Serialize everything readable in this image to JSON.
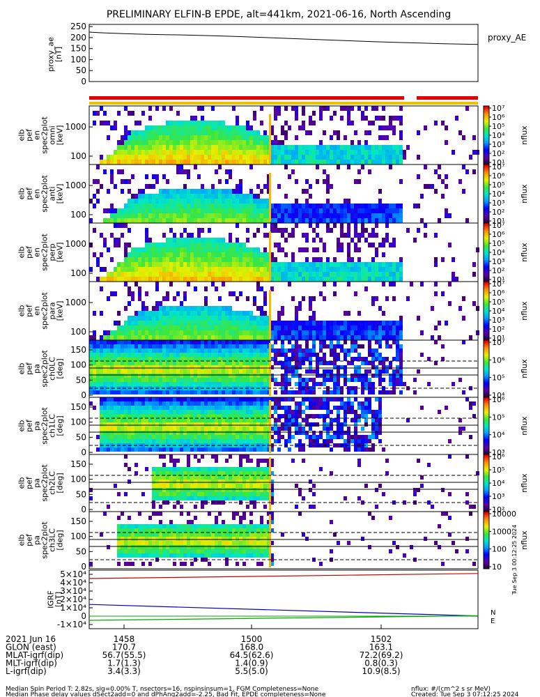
{
  "title": "PRELIMINARY ELFIN-B EPDE, alt=441km, 2021-06-16, North Ascending",
  "colors": {
    "background": "#ffffff",
    "axes": "#000000",
    "fov_bar_red": "#e00000",
    "fov_bar_yellow": "#f0c000",
    "igrf_x": "#cc0000",
    "igrf_y": "#00aa00",
    "igrf_z": "#0000cc",
    "proxy_ae_line": "#000000"
  },
  "colorbar_ticks": {
    "energy": [
      "10¹",
      "10²",
      "10³",
      "10⁴",
      "10⁵",
      "10⁶",
      "10⁷"
    ],
    "pa0": [
      "10⁴",
      "10⁵",
      "10⁶",
      "10⁷"
    ],
    "pa1": [
      "10³",
      "10⁴",
      "10⁵",
      "10⁶"
    ],
    "pa2": [
      "10²",
      "10³",
      "10⁴",
      "10⁵",
      "10⁶"
    ],
    "pa3": [
      "10",
      "100",
      "1000",
      "10000"
    ]
  },
  "footer": {
    "rows": [
      {
        "label": "2021 Jun 16",
        "values": [
          "1458",
          "1500",
          "1502"
        ]
      },
      {
        "label": "GLON (east)",
        "values": [
          "170.7",
          "168.0",
          "163.1"
        ]
      },
      {
        "label": "MLAT-igrf(dip)",
        "values": [
          "56.7(55.5)",
          "64.5(62.6)",
          "72.2(69.2)"
        ]
      },
      {
        "label": "MLT-igrf(dip)",
        "values": [
          "1.7(1.3)",
          "1.4(0.9)",
          "0.8(0.3)"
        ]
      },
      {
        "label": "L-igrf(dip)",
        "values": [
          "3.4(3.3)",
          "5.5(5.0)",
          "10.9(8.5)"
        ]
      }
    ],
    "note1": "Median Spin Period T: 2.82s, sig=0.00% T, nsectors=16, nspinsinsum=1, FGM Completeness=None",
    "note2": "Median Phase delay values dSect2add=0 and dPhAng2add=-2.25, Bad Fit, EPDE completeness=None",
    "units": "nflux: #/(cm^2 s sr MeV)",
    "created": "Created: Tue Sep  3 07:12:25 2024",
    "side_stamp": "Tue Sep  3 00:12:25 2024"
  },
  "chart_data": [
    {
      "type": "line",
      "panel": "proxy_ae",
      "ylabel": "proxy_ae\n[nT]",
      "legend": "proxy_AE",
      "ylim": [
        0,
        260
      ],
      "yticks": [
        "0",
        "50",
        "100",
        "150",
        "200",
        "250"
      ],
      "x_minutes": [
        0,
        0.1,
        0.3,
        0.5,
        0.7,
        0.9,
        1.1,
        1.3,
        1.5,
        1.7,
        1.9,
        2.1,
        2.3,
        2.5,
        2.7,
        2.9,
        3.1,
        3.4
      ],
      "values": [
        225,
        222,
        218,
        215,
        213,
        211,
        208,
        205,
        201,
        197,
        193,
        189,
        185,
        181,
        178,
        175,
        172,
        169
      ]
    },
    {
      "type": "heatmap",
      "panel": "energy-omni",
      "ylabel": "elb\npef\nen\nspec2plot\nomni\n[keV]",
      "yticks": [
        "100",
        "1000"
      ],
      "zlabel": "nflux",
      "zrange_log10": [
        1,
        7
      ]
    },
    {
      "type": "heatmap",
      "panel": "energy-anti",
      "ylabel": "elb\npef\nen\nspec2plot\nanti\n[keV]",
      "yticks": [
        "100",
        "1000"
      ],
      "zlabel": "nflux",
      "zrange_log10": [
        1,
        7
      ]
    },
    {
      "type": "heatmap",
      "panel": "energy-perp",
      "ylabel": "elb\npef\nen\nspec2plot\nperp\n[keV]",
      "yticks": [
        "100",
        "1000"
      ],
      "zlabel": "nflux",
      "zrange_log10": [
        1,
        7
      ]
    },
    {
      "type": "heatmap",
      "panel": "energy-para",
      "ylabel": "elb\npef\nen\nspec2plot\npara\n[keV]",
      "yticks": [
        "100",
        "1000"
      ],
      "zlabel": "nflux",
      "zrange_log10": [
        1,
        7
      ]
    },
    {
      "type": "heatmap",
      "panel": "pa-ch0",
      "ylabel": "elb\npef\npa\nspec2plot\nch0LC\n[deg]",
      "yticks": [
        "0",
        "50",
        "100",
        "150"
      ],
      "ylim": [
        0,
        180
      ],
      "zlabel": "nflux",
      "zrange_log10": [
        3.5,
        7
      ]
    },
    {
      "type": "heatmap",
      "panel": "pa-ch1",
      "ylabel": "elb\npef\npa\nspec2plot\nch1LC\n[deg]",
      "yticks": [
        "0",
        "50",
        "100",
        "150"
      ],
      "ylim": [
        0,
        180
      ],
      "zlabel": "nflux",
      "zrange_log10": [
        3,
        6.5
      ]
    },
    {
      "type": "heatmap",
      "panel": "pa-ch2",
      "ylabel": "elb\npef\npa\nspec2plot\nch2LC\n[deg]",
      "yticks": [
        "0",
        "50",
        "100",
        "150"
      ],
      "ylim": [
        0,
        180
      ],
      "zlabel": "nflux",
      "zrange_log10": [
        2,
        6.5
      ]
    },
    {
      "type": "heatmap",
      "panel": "pa-ch3",
      "ylabel": "elb\npef\npa\nspec2plot\nch3LC\n[deg]",
      "yticks": [
        "0",
        "50",
        "100",
        "150"
      ],
      "ylim": [
        0,
        180
      ],
      "zlabel": "nflux",
      "zrange_log10": [
        1,
        4
      ]
    },
    {
      "type": "line",
      "panel": "igrf",
      "ylabel": "IGRF\n[nT]",
      "yticks": [
        "-1×10⁴",
        "0",
        "1×10⁴",
        "2×10⁴",
        "3×10⁴",
        "4×10⁴",
        "5×10⁴"
      ],
      "ylim": [
        -15000,
        55000
      ],
      "legend": [
        "N",
        "E"
      ],
      "x_minutes": [
        0,
        3.4
      ],
      "series": [
        {
          "color_key": "igrf_x",
          "values": [
            45000,
            51000
          ]
        },
        {
          "color_key": "igrf_z",
          "values": [
            14000,
            200
          ]
        },
        {
          "color_key": "igrf_y",
          "values": [
            -5000,
            500
          ]
        }
      ]
    }
  ]
}
